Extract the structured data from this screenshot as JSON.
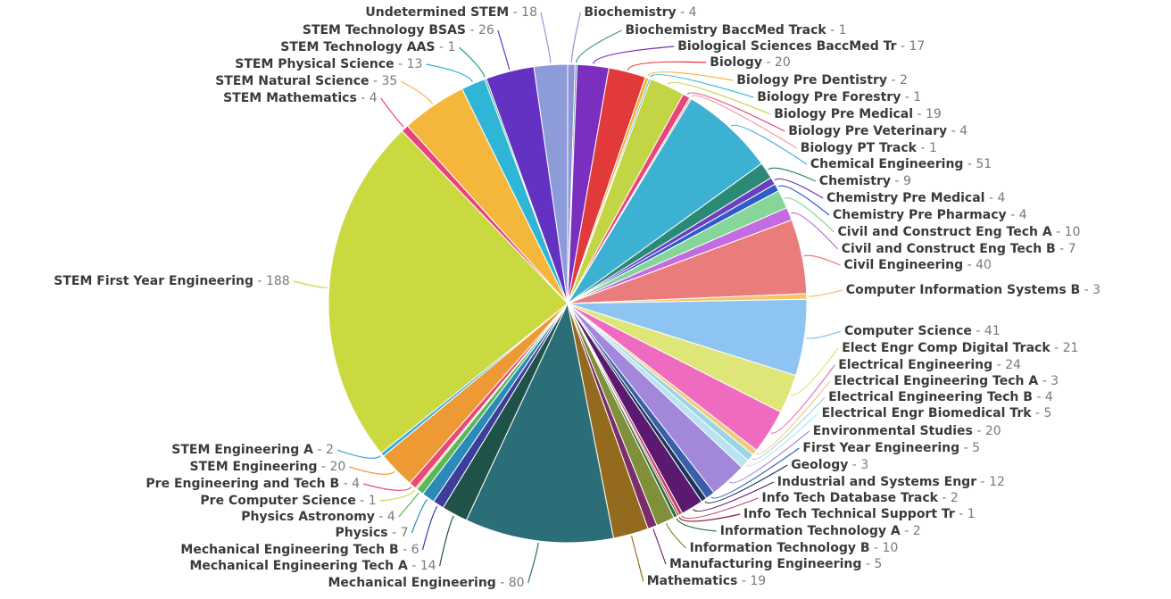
{
  "chart_data": {
    "type": "pie",
    "title": "",
    "slices": [
      {
        "label": "Biochemistry",
        "value": 4,
        "color": "#8e94d6"
      },
      {
        "label": "Biochemistry BaccMed Track",
        "value": 1,
        "color": "#3f8f8a"
      },
      {
        "label": "Biological Sciences BaccMed Tr",
        "value": 17,
        "color": "#7b2fbf"
      },
      {
        "label": "Biology",
        "value": 20,
        "color": "#e23a3a"
      },
      {
        "label": "Biology Pre Dentistry",
        "value": 2,
        "color": "#f6b43c"
      },
      {
        "label": "Biology Pre Forestry",
        "value": 1,
        "color": "#38b7d6"
      },
      {
        "label": "Biology Pre Medical",
        "value": 19,
        "color": "#c3d544"
      },
      {
        "label": "Biology Pre Veterinary",
        "value": 4,
        "color": "#e8467a"
      },
      {
        "label": "Biology PT Track",
        "value": 1,
        "color": "#f29fa6"
      },
      {
        "label": "Chemical Engineering",
        "value": 51,
        "color": "#3cb1d2"
      },
      {
        "label": "Chemistry",
        "value": 9,
        "color": "#2a8a75"
      },
      {
        "label": "Chemistry Pre Medical",
        "value": 4,
        "color": "#6a3fc1"
      },
      {
        "label": "Chemistry Pre Pharmacy",
        "value": 4,
        "color": "#2e5cc7"
      },
      {
        "label": "Civil and Construct Eng Tech A",
        "value": 10,
        "color": "#86d69a"
      },
      {
        "label": "Civil and Construct Eng Tech B",
        "value": 7,
        "color": "#c36be0"
      },
      {
        "label": "Civil Engineering",
        "value": 40,
        "color": "#ea7c7c"
      },
      {
        "label": "Computer Information Systems B",
        "value": 3,
        "color": "#f6c46a"
      },
      {
        "label": "Computer Science",
        "value": 41,
        "color": "#8ec4f2"
      },
      {
        "label": "Elect Engr Comp Digital Track",
        "value": 21,
        "color": "#dfe678"
      },
      {
        "label": "Electrical Engineering",
        "value": 24,
        "color": "#ee6bbf"
      },
      {
        "label": "Electrical Engineering Tech A",
        "value": 3,
        "color": "#f5c97c"
      },
      {
        "label": "Electrical Engineering Tech B",
        "value": 4,
        "color": "#9ad6e6"
      },
      {
        "label": "Electrical Engr Biomedical Trk",
        "value": 5,
        "color": "#b9e3ee"
      },
      {
        "label": "Environmental Studies",
        "value": 20,
        "color": "#a287db"
      },
      {
        "label": "First Year Engineering",
        "value": 5,
        "color": "#3a5ea8"
      },
      {
        "label": "Geology",
        "value": 3,
        "color": "#1a3557"
      },
      {
        "label": "Industrial and Systems Engr",
        "value": 12,
        "color": "#5a1a70"
      },
      {
        "label": "Info Tech Database Track",
        "value": 2,
        "color": "#c24766"
      },
      {
        "label": "Info Tech Technical Support Tr",
        "value": 1,
        "color": "#8a1c2a"
      },
      {
        "label": "Information Technology A",
        "value": 2,
        "color": "#2f6e3a"
      },
      {
        "label": "Information Technology B",
        "value": 10,
        "color": "#7f8f3a"
      },
      {
        "label": "Manufacturing Engineering",
        "value": 5,
        "color": "#7a2d6a"
      },
      {
        "label": "Mathematics",
        "value": 19,
        "color": "#946a1e"
      },
      {
        "label": "Mechanical Engineering",
        "value": 80,
        "color": "#2c6e78"
      },
      {
        "label": "Mechanical Engineering Tech A",
        "value": 14,
        "color": "#1f5248"
      },
      {
        "label": "Mechanical Engineering Tech B",
        "value": 6,
        "color": "#3d3d9a"
      },
      {
        "label": "Physics",
        "value": 7,
        "color": "#2a8ab8"
      },
      {
        "label": "Physics Astronomy",
        "value": 4,
        "color": "#5ab85a"
      },
      {
        "label": "Pre Computer Science",
        "value": 1,
        "color": "#ccd84e"
      },
      {
        "label": "Pre Engineering and Tech B",
        "value": 4,
        "color": "#e8487a"
      },
      {
        "label": "STEM Engineering",
        "value": 20,
        "color": "#ed9a35"
      },
      {
        "label": "STEM Engineering A",
        "value": 2,
        "color": "#3aa8e0"
      },
      {
        "label": "STEM First Year Engineering",
        "value": 188,
        "color": "#cad93f"
      },
      {
        "label": "STEM Mathematics",
        "value": 4,
        "color": "#e8447c"
      },
      {
        "label": "STEM Natural Science",
        "value": 35,
        "color": "#f5b63c"
      },
      {
        "label": "STEM Physical Science",
        "value": 13,
        "color": "#2fb5d6"
      },
      {
        "label": "STEM Technology AAS",
        "value": 1,
        "color": "#28a879"
      },
      {
        "label": "STEM Technology BSAS",
        "value": 26,
        "color": "#6432c2"
      },
      {
        "label": "Undetermined STEM",
        "value": 18,
        "color": "#8d9bd8"
      }
    ]
  }
}
